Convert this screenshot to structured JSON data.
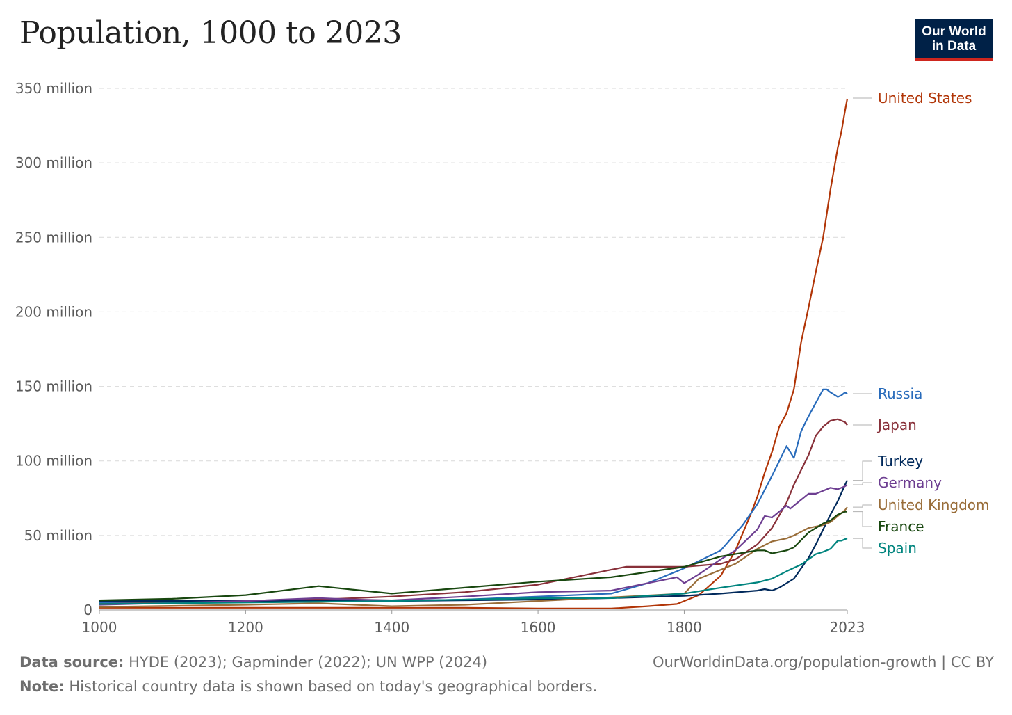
{
  "title": "Population, 1000 to 2023",
  "logo": {
    "line1": "Our World",
    "line2": "in Data"
  },
  "footer": {
    "source_label": "Data source:",
    "source_text": "HYDE (2023); Gapminder (2022); UN WPP (2024)",
    "note_label": "Note:",
    "note_text": "Historical country data is shown based on today's geographical borders.",
    "url": "OurWorldinData.org/population-growth | CC BY"
  },
  "chart_data": {
    "type": "line",
    "title": "Population, 1000 to 2023",
    "xlim": [
      1000,
      2023
    ],
    "ylim": [
      0,
      350000000
    ],
    "x_ticks": [
      {
        "value": 1000,
        "label": "1000"
      },
      {
        "value": 1200,
        "label": "1200"
      },
      {
        "value": 1400,
        "label": "1400"
      },
      {
        "value": 1600,
        "label": "1600"
      },
      {
        "value": 1800,
        "label": "1800"
      },
      {
        "value": 2023,
        "label": "2023"
      }
    ],
    "y_ticks": [
      {
        "value": 0,
        "label": "0"
      },
      {
        "value": 50000000,
        "label": "50 million"
      },
      {
        "value": 100000000,
        "label": "100 million"
      },
      {
        "value": 150000000,
        "label": "150 million"
      },
      {
        "value": 200000000,
        "label": "200 million"
      },
      {
        "value": 250000000,
        "label": "250 million"
      },
      {
        "value": 300000000,
        "label": "300 million"
      },
      {
        "value": 350000000,
        "label": "350 million"
      }
    ],
    "grid": "horizontal dashed",
    "legend": "labels at right end of lines",
    "series": [
      {
        "name": "United States",
        "color": "#b13507",
        "points": [
          [
            1000,
            1500000
          ],
          [
            1200,
            1500000
          ],
          [
            1400,
            1500000
          ],
          [
            1500,
            1500000
          ],
          [
            1600,
            1000000
          ],
          [
            1700,
            1000000
          ],
          [
            1750,
            2500000
          ],
          [
            1790,
            4000000
          ],
          [
            1800,
            6000000
          ],
          [
            1820,
            10000000
          ],
          [
            1850,
            23000000
          ],
          [
            1870,
            40000000
          ],
          [
            1890,
            63000000
          ],
          [
            1900,
            76000000
          ],
          [
            1910,
            92000000
          ],
          [
            1920,
            106000000
          ],
          [
            1930,
            123000000
          ],
          [
            1940,
            132000000
          ],
          [
            1950,
            148000000
          ],
          [
            1960,
            180000000
          ],
          [
            1970,
            203000000
          ],
          [
            1980,
            227000000
          ],
          [
            1990,
            250000000
          ],
          [
            2000,
            282000000
          ],
          [
            2010,
            310000000
          ],
          [
            2015,
            321000000
          ],
          [
            2020,
            335000000
          ],
          [
            2023,
            343000000
          ]
        ]
      },
      {
        "name": "Russia",
        "color": "#286bbb",
        "points": [
          [
            1000,
            5000000
          ],
          [
            1200,
            6000000
          ],
          [
            1300,
            7000000
          ],
          [
            1400,
            6000000
          ],
          [
            1500,
            7000000
          ],
          [
            1600,
            9000000
          ],
          [
            1700,
            11000000
          ],
          [
            1750,
            18000000
          ],
          [
            1800,
            28000000
          ],
          [
            1850,
            40000000
          ],
          [
            1880,
            57000000
          ],
          [
            1900,
            71000000
          ],
          [
            1920,
            90000000
          ],
          [
            1940,
            110000000
          ],
          [
            1950,
            102000000
          ],
          [
            1960,
            120000000
          ],
          [
            1970,
            130000000
          ],
          [
            1980,
            139000000
          ],
          [
            1990,
            148000000
          ],
          [
            1995,
            148000000
          ],
          [
            2000,
            146000000
          ],
          [
            2010,
            143000000
          ],
          [
            2015,
            144000000
          ],
          [
            2020,
            146000000
          ],
          [
            2023,
            145000000
          ]
        ]
      },
      {
        "name": "Japan",
        "color": "#883039",
        "points": [
          [
            1000,
            4000000
          ],
          [
            1200,
            6000000
          ],
          [
            1300,
            7000000
          ],
          [
            1400,
            9000000
          ],
          [
            1500,
            12000000
          ],
          [
            1600,
            17000000
          ],
          [
            1700,
            27000000
          ],
          [
            1720,
            29000000
          ],
          [
            1800,
            29000000
          ],
          [
            1850,
            31000000
          ],
          [
            1870,
            34000000
          ],
          [
            1900,
            44000000
          ],
          [
            1920,
            55000000
          ],
          [
            1940,
            72000000
          ],
          [
            1950,
            84000000
          ],
          [
            1960,
            94000000
          ],
          [
            1970,
            104000000
          ],
          [
            1980,
            117000000
          ],
          [
            1990,
            123000000
          ],
          [
            2000,
            127000000
          ],
          [
            2010,
            128000000
          ],
          [
            2015,
            127000000
          ],
          [
            2020,
            126000000
          ],
          [
            2023,
            124000000
          ]
        ]
      },
      {
        "name": "Turkey",
        "color": "#00295b",
        "points": [
          [
            1000,
            6000000
          ],
          [
            1200,
            6000000
          ],
          [
            1400,
            6000000
          ],
          [
            1600,
            7000000
          ],
          [
            1700,
            8000000
          ],
          [
            1800,
            9500000
          ],
          [
            1850,
            11000000
          ],
          [
            1900,
            13000000
          ],
          [
            1910,
            14000000
          ],
          [
            1920,
            13000000
          ],
          [
            1930,
            15000000
          ],
          [
            1950,
            21000000
          ],
          [
            1960,
            28000000
          ],
          [
            1970,
            35000000
          ],
          [
            1980,
            44000000
          ],
          [
            1990,
            54000000
          ],
          [
            2000,
            64000000
          ],
          [
            2010,
            73000000
          ],
          [
            2020,
            84000000
          ],
          [
            2023,
            87000000
          ]
        ]
      },
      {
        "name": "Germany",
        "color": "#6d3e91",
        "points": [
          [
            1000,
            3500000
          ],
          [
            1200,
            6000000
          ],
          [
            1300,
            8000000
          ],
          [
            1350,
            7000000
          ],
          [
            1400,
            6500000
          ],
          [
            1500,
            9000000
          ],
          [
            1600,
            12000000
          ],
          [
            1700,
            13000000
          ],
          [
            1790,
            22000000
          ],
          [
            1800,
            18000000
          ],
          [
            1820,
            24000000
          ],
          [
            1850,
            34000000
          ],
          [
            1870,
            40000000
          ],
          [
            1900,
            54000000
          ],
          [
            1910,
            63000000
          ],
          [
            1920,
            62000000
          ],
          [
            1940,
            70000000
          ],
          [
            1945,
            68000000
          ],
          [
            1950,
            70000000
          ],
          [
            1970,
            78000000
          ],
          [
            1980,
            78000000
          ],
          [
            1990,
            80000000
          ],
          [
            2000,
            82000000
          ],
          [
            2010,
            81000000
          ],
          [
            2020,
            83000000
          ],
          [
            2023,
            84000000
          ]
        ]
      },
      {
        "name": "United Kingdom",
        "color": "#996d39",
        "points": [
          [
            1000,
            2000000
          ],
          [
            1200,
            3500000
          ],
          [
            1300,
            4500000
          ],
          [
            1400,
            2500000
          ],
          [
            1500,
            3500000
          ],
          [
            1600,
            6000000
          ],
          [
            1700,
            8500000
          ],
          [
            1800,
            11000000
          ],
          [
            1820,
            21000000
          ],
          [
            1850,
            27000000
          ],
          [
            1870,
            31000000
          ],
          [
            1900,
            41000000
          ],
          [
            1920,
            46000000
          ],
          [
            1940,
            48000000
          ],
          [
            1950,
            50000000
          ],
          [
            1970,
            55000000
          ],
          [
            1990,
            57000000
          ],
          [
            2000,
            59000000
          ],
          [
            2010,
            63000000
          ],
          [
            2020,
            67000000
          ],
          [
            2023,
            69000000
          ]
        ]
      },
      {
        "name": "France",
        "color": "#18470f",
        "points": [
          [
            1000,
            6500000
          ],
          [
            1100,
            7500000
          ],
          [
            1200,
            10000000
          ],
          [
            1300,
            16000000
          ],
          [
            1400,
            11000000
          ],
          [
            1500,
            15000000
          ],
          [
            1600,
            19000000
          ],
          [
            1700,
            22000000
          ],
          [
            1800,
            29000000
          ],
          [
            1850,
            36000000
          ],
          [
            1900,
            40000000
          ],
          [
            1910,
            40000000
          ],
          [
            1920,
            38000000
          ],
          [
            1940,
            40000000
          ],
          [
            1950,
            42000000
          ],
          [
            1970,
            52000000
          ],
          [
            1990,
            58000000
          ],
          [
            2000,
            60000000
          ],
          [
            2010,
            64000000
          ],
          [
            2020,
            66000000
          ],
          [
            2023,
            66000000
          ]
        ]
      },
      {
        "name": "Spain",
        "color": "#00847e",
        "points": [
          [
            1000,
            4000000
          ],
          [
            1200,
            5000000
          ],
          [
            1400,
            6000000
          ],
          [
            1500,
            7000000
          ],
          [
            1600,
            8000000
          ],
          [
            1700,
            8000000
          ],
          [
            1800,
            11000000
          ],
          [
            1850,
            15000000
          ],
          [
            1900,
            18500000
          ],
          [
            1920,
            21000000
          ],
          [
            1940,
            26000000
          ],
          [
            1960,
            30500000
          ],
          [
            1970,
            34000000
          ],
          [
            1980,
            37500000
          ],
          [
            1990,
            39000000
          ],
          [
            2000,
            41000000
          ],
          [
            2010,
            46500000
          ],
          [
            2015,
            46500000
          ],
          [
            2020,
            47500000
          ],
          [
            2023,
            48000000
          ]
        ]
      }
    ]
  }
}
